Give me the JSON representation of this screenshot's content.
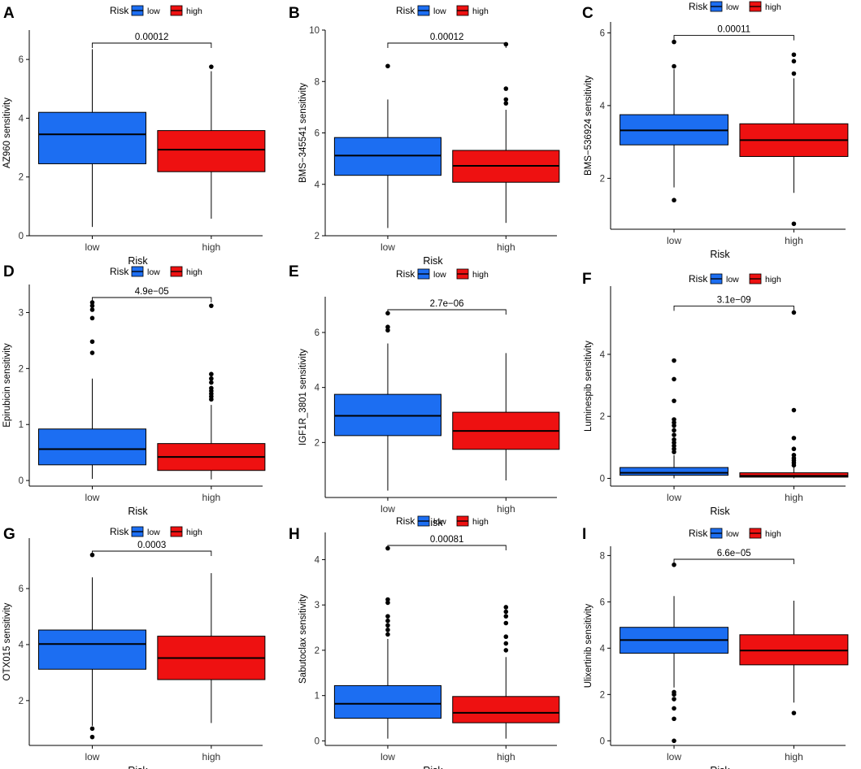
{
  "legend_title": "Risk",
  "colors": {
    "low": "#1c6ef2",
    "high": "#ee1111",
    "axis": "#000000"
  },
  "chart_data": [
    {
      "panel": "A",
      "type": "boxplot",
      "xlabel": "Risk",
      "ylabel": "AZ960 sensitivity",
      "categories": [
        "low",
        "high"
      ],
      "legend": [
        "low",
        "high"
      ],
      "ylim": [
        0,
        7
      ],
      "yticks": [
        0,
        2,
        4,
        6
      ],
      "p_value": "0.00012",
      "boxes": [
        {
          "group": "low",
          "whisker_low": 0.3,
          "q1": 2.45,
          "median": 3.45,
          "q3": 4.2,
          "whisker_high": 6.35,
          "outliers": []
        },
        {
          "group": "high",
          "whisker_low": 0.58,
          "q1": 2.18,
          "median": 2.93,
          "q3": 3.58,
          "whisker_high": 5.6,
          "outliers": [
            5.75
          ]
        }
      ]
    },
    {
      "panel": "B",
      "type": "boxplot",
      "xlabel": "Risk",
      "ylabel": "BMS−345541 sensitivity",
      "categories": [
        "low",
        "high"
      ],
      "legend": [
        "low",
        "high"
      ],
      "ylim": [
        2,
        10
      ],
      "yticks": [
        2,
        4,
        6,
        8,
        10
      ],
      "p_value": "0.00012",
      "boxes": [
        {
          "group": "low",
          "whisker_low": 2.3,
          "q1": 4.35,
          "median": 5.12,
          "q3": 5.82,
          "whisker_high": 7.3,
          "outliers": [
            8.6
          ]
        },
        {
          "group": "high",
          "whisker_low": 2.5,
          "q1": 4.08,
          "median": 4.72,
          "q3": 5.32,
          "whisker_high": 6.9,
          "outliers": [
            7.15,
            7.3,
            7.72,
            9.45
          ]
        }
      ]
    },
    {
      "panel": "C",
      "type": "boxplot",
      "xlabel": "Risk",
      "ylabel": "BMS−536924 sensitivity",
      "categories": [
        "low",
        "high"
      ],
      "legend": [
        "low",
        "high"
      ],
      "ylim": [
        0.6,
        6.3
      ],
      "yticks": [
        2,
        4,
        6
      ],
      "p_value": "0.00011",
      "boxes": [
        {
          "group": "low",
          "whisker_low": 1.75,
          "q1": 2.92,
          "median": 3.32,
          "q3": 3.75,
          "whisker_high": 5.0,
          "outliers": [
            1.4,
            5.08,
            5.75
          ]
        },
        {
          "group": "high",
          "whisker_low": 1.6,
          "q1": 2.6,
          "median": 3.05,
          "q3": 3.5,
          "whisker_high": 4.75,
          "outliers": [
            0.75,
            4.88,
            5.22,
            5.4
          ]
        }
      ]
    },
    {
      "panel": "D",
      "type": "boxplot",
      "xlabel": "Risk",
      "ylabel": "Epirubicin sensitivity",
      "categories": [
        "low",
        "high"
      ],
      "legend": [
        "low",
        "high"
      ],
      "ylim": [
        -0.1,
        3.5
      ],
      "yticks": [
        0,
        1,
        2,
        3
      ],
      "p_value": "4.9e−05",
      "boxes": [
        {
          "group": "low",
          "whisker_low": 0.03,
          "q1": 0.28,
          "median": 0.56,
          "q3": 0.92,
          "whisker_high": 1.82,
          "outliers": [
            2.28,
            2.48,
            2.9,
            3.05,
            3.12,
            3.18
          ]
        },
        {
          "group": "high",
          "whisker_low": 0.02,
          "q1": 0.18,
          "median": 0.42,
          "q3": 0.66,
          "whisker_high": 1.35,
          "outliers": [
            1.45,
            1.5,
            1.55,
            1.6,
            1.65,
            1.75,
            1.82,
            1.9,
            3.12
          ]
        }
      ]
    },
    {
      "panel": "E",
      "type": "boxplot",
      "xlabel": "Risk",
      "ylabel": "IGF1R_3801 sensitivity",
      "categories": [
        "low",
        "high"
      ],
      "legend": [
        "low",
        "high"
      ],
      "ylim": [
        0,
        7.3
      ],
      "yticks": [
        2,
        4,
        6
      ],
      "p_value": "2.7e−06",
      "boxes": [
        {
          "group": "low",
          "whisker_low": 0.25,
          "q1": 2.25,
          "median": 2.97,
          "q3": 3.75,
          "whisker_high": 5.6,
          "outliers": [
            6.08,
            6.2,
            6.7
          ]
        },
        {
          "group": "high",
          "whisker_low": 0.62,
          "q1": 1.75,
          "median": 2.42,
          "q3": 3.1,
          "whisker_high": 5.25,
          "outliers": []
        }
      ]
    },
    {
      "panel": "F",
      "type": "boxplot",
      "xlabel": "Risk",
      "ylabel": "Luminespib sensitivity",
      "categories": [
        "low",
        "high"
      ],
      "legend": [
        "low",
        "high"
      ],
      "ylim": [
        -0.25,
        6.2
      ],
      "yticks": [
        0,
        2,
        4
      ],
      "p_value": "3.1e−09",
      "boxes": [
        {
          "group": "low",
          "whisker_low": 0.0,
          "q1": 0.1,
          "median": 0.18,
          "q3": 0.35,
          "whisker_high": 0.75,
          "outliers": [
            0.85,
            0.95,
            1.05,
            1.15,
            1.25,
            1.4,
            1.55,
            1.7,
            1.8,
            1.9,
            2.5,
            3.2,
            3.8
          ]
        },
        {
          "group": "high",
          "whisker_low": 0.0,
          "q1": 0.04,
          "median": 0.08,
          "q3": 0.18,
          "whisker_high": 0.38,
          "outliers": [
            0.42,
            0.5,
            0.58,
            0.65,
            0.75,
            0.95,
            1.3,
            2.2,
            5.35
          ]
        }
      ]
    },
    {
      "panel": "G",
      "type": "boxplot",
      "xlabel": "Risk",
      "ylabel": "OTX015 sensitivity",
      "categories": [
        "low",
        "high"
      ],
      "legend": [
        "low",
        "high"
      ],
      "ylim": [
        0.4,
        7.8
      ],
      "yticks": [
        2,
        4,
        6
      ],
      "p_value": "0.0003",
      "boxes": [
        {
          "group": "low",
          "whisker_low": 1.1,
          "q1": 3.12,
          "median": 4.02,
          "q3": 4.52,
          "whisker_high": 6.4,
          "outliers": [
            0.7,
            1.0,
            7.2
          ]
        },
        {
          "group": "high",
          "whisker_low": 1.2,
          "q1": 2.75,
          "median": 3.52,
          "q3": 4.3,
          "whisker_high": 6.55,
          "outliers": []
        }
      ]
    },
    {
      "panel": "H",
      "type": "boxplot",
      "xlabel": "Risk",
      "ylabel": "Sabutoclax sensitivity",
      "categories": [
        "low",
        "high"
      ],
      "legend": [
        "low",
        "high"
      ],
      "ylim": [
        -0.1,
        4.6
      ],
      "yticks": [
        0,
        1,
        2,
        3,
        4
      ],
      "p_value": "0.00081",
      "boxes": [
        {
          "group": "low",
          "whisker_low": 0.05,
          "q1": 0.5,
          "median": 0.82,
          "q3": 1.22,
          "whisker_high": 2.25,
          "outliers": [
            2.35,
            2.45,
            2.55,
            2.65,
            2.75,
            3.05,
            3.12,
            4.25
          ]
        },
        {
          "group": "high",
          "whisker_low": 0.05,
          "q1": 0.4,
          "median": 0.62,
          "q3": 0.98,
          "whisker_high": 1.85,
          "outliers": [
            2.0,
            2.15,
            2.3,
            2.6,
            2.75,
            2.85,
            2.95
          ]
        }
      ]
    },
    {
      "panel": "I",
      "type": "boxplot",
      "xlabel": "Risk",
      "ylabel": "Ulixertinib sensitivity",
      "categories": [
        "low",
        "high"
      ],
      "legend": [
        "low",
        "high"
      ],
      "ylim": [
        -0.2,
        8.4
      ],
      "yticks": [
        0,
        2,
        4,
        6,
        8
      ],
      "p_value": "6.6e−05",
      "boxes": [
        {
          "group": "low",
          "whisker_low": 2.3,
          "q1": 3.78,
          "median": 4.35,
          "q3": 4.9,
          "whisker_high": 6.25,
          "outliers": [
            0.0,
            0.95,
            1.4,
            1.8,
            2.0,
            2.1,
            7.6
          ]
        },
        {
          "group": "high",
          "whisker_low": 1.65,
          "q1": 3.28,
          "median": 3.9,
          "q3": 4.58,
          "whisker_high": 6.05,
          "outliers": [
            1.2
          ]
        }
      ]
    }
  ]
}
